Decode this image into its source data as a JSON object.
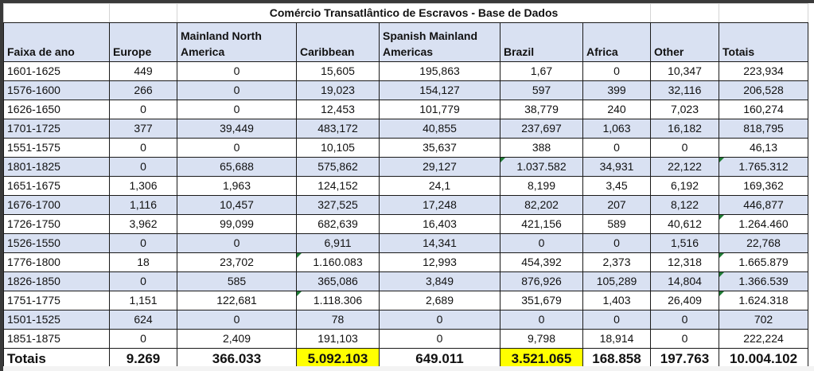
{
  "title": "Comércio Transatlântico de Escravos - Base de Dados",
  "headers": [
    "Faixa de ano",
    "Europe",
    "Mainland North America",
    "Caribbean",
    "Spanish Mainland Americas",
    "Brazil",
    "Africa",
    "Other",
    "Totais"
  ],
  "rows": [
    [
      "1601-1625",
      "449",
      "0",
      "15,605",
      "195,863",
      "1,67",
      "0",
      "10,347",
      "223,934"
    ],
    [
      "1576-1600",
      "266",
      "0",
      "19,023",
      "154,127",
      "597",
      "399",
      "32,116",
      "206,528"
    ],
    [
      "1626-1650",
      "0",
      "0",
      "12,453",
      "101,779",
      "38,779",
      "240",
      "7,023",
      "160,274"
    ],
    [
      "1701-1725",
      "377",
      "39,449",
      "483,172",
      "40,855",
      "237,697",
      "1,063",
      "16,182",
      "818,795"
    ],
    [
      "1551-1575",
      "0",
      "0",
      "10,105",
      "35,637",
      "388",
      "0",
      "0",
      "46,13"
    ],
    [
      "1801-1825",
      "0",
      "65,688",
      "575,862",
      "29,127",
      "1.037.582",
      "34,931",
      "22,122",
      "1.765.312"
    ],
    [
      "1651-1675",
      "1,306",
      "1,963",
      "124,152",
      "24,1",
      "8,199",
      "3,45",
      "6,192",
      "169,362"
    ],
    [
      "1676-1700",
      "1,116",
      "10,457",
      "327,525",
      "17,248",
      "82,202",
      "207",
      "8,122",
      "446,877"
    ],
    [
      "1726-1750",
      "3,962",
      "99,099",
      "682,639",
      "16,403",
      "421,156",
      "589",
      "40,612",
      "1.264.460"
    ],
    [
      "1526-1550",
      "0",
      "0",
      "6,911",
      "14,341",
      "0",
      "0",
      "1,516",
      "22,768"
    ],
    [
      "1776-1800",
      "18",
      "23,702",
      "1.160.083",
      "12,993",
      "454,392",
      "2,373",
      "12,318",
      "1.665.879"
    ],
    [
      "1826-1850",
      "0",
      "585",
      "365,086",
      "3,849",
      "876,926",
      "105,289",
      "14,804",
      "1.366.539"
    ],
    [
      "1751-1775",
      "1,151",
      "122,681",
      "1.118.306",
      "2,689",
      "351,679",
      "1,403",
      "26,409",
      "1.624.318"
    ],
    [
      "1501-1525",
      "624",
      "0",
      "78",
      "0",
      "0",
      "0",
      "0",
      "702"
    ],
    [
      "1851-1875",
      "0",
      "2,409",
      "191,103",
      "0",
      "9,798",
      "18,914",
      "0",
      "222,224"
    ]
  ],
  "totals": [
    "Totais",
    "9.269",
    "366.033",
    "5.092.103",
    "649.011",
    "3.521.065",
    "168.858",
    "197.763",
    "10.004.102"
  ],
  "highlight_color": "#ffff00",
  "stripe_color": "#d9e1f2"
}
